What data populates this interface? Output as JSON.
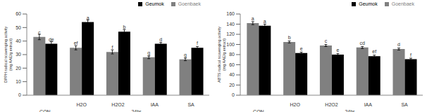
{
  "chart_data": [
    {
      "type": "bar",
      "y_label": "DPPH radical scavenging activity (mg AAE/g extract)",
      "categories": [
        null,
        "H2O",
        "H2O2",
        "IAA",
        "SA"
      ],
      "group_labels": [
        "CON",
        "24hr",
        "24hr",
        "24hr",
        "24hr"
      ],
      "series": [
        {
          "name": "Goenbaek",
          "color": "#808080",
          "values": [
            43,
            35,
            32,
            28,
            26.5
          ],
          "errors": [
            2,
            1.5,
            1.5,
            1,
            1
          ],
          "annotations": [
            "c",
            "ef",
            "f",
            "g",
            "g"
          ]
        },
        {
          "name": "Geumok",
          "color": "#000000",
          "values": [
            38,
            54,
            47,
            38,
            35
          ],
          "errors": [
            1.5,
            1.5,
            1.5,
            1,
            1
          ],
          "annotations": [
            "de",
            "a",
            "b",
            "d",
            "f"
          ]
        }
      ],
      "ylim": [
        0,
        60
      ],
      "yticks": [
        0,
        10,
        20,
        30,
        40,
        50,
        60
      ],
      "grid": false,
      "legend": "upper right"
    },
    {
      "type": "bar",
      "y_label": "ABTS radical scavenging activity (mg AAE/g extract)",
      "categories": [
        null,
        "H2O",
        "H2O2",
        "IAA",
        "SA"
      ],
      "group_labels": [
        "CON",
        "24hr",
        "24hr",
        "24hr",
        "24hr"
      ],
      "series": [
        {
          "name": "Goenbaek",
          "color": "#808080",
          "values": [
            142,
            105,
            98,
            94,
            91
          ],
          "errors": [
            3,
            2,
            2,
            2,
            2
          ],
          "annotations": [
            "a",
            "b",
            "c",
            "cd",
            "d"
          ]
        },
        {
          "name": "Geumok",
          "color": "#000000",
          "values": [
            137,
            83,
            80,
            77,
            71
          ],
          "errors": [
            3,
            2,
            2,
            2,
            2
          ],
          "annotations": [
            "a",
            "e",
            "e",
            "ef",
            "f"
          ]
        }
      ],
      "ylim": [
        0,
        160
      ],
      "yticks": [
        0,
        20,
        40,
        60,
        80,
        100,
        120,
        140,
        160
      ],
      "grid": false,
      "legend": "upper right"
    }
  ]
}
